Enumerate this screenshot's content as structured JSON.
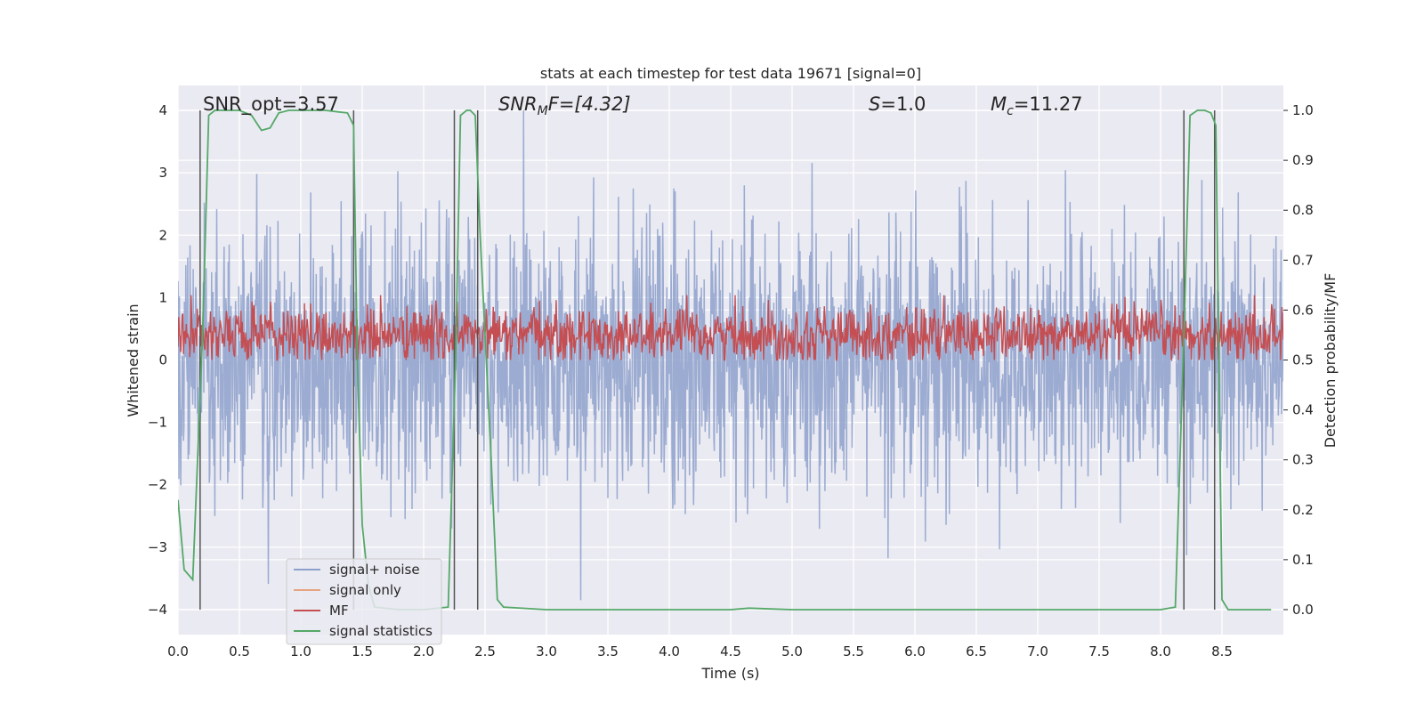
{
  "chart_data": {
    "type": "line",
    "title": "stats at each timestep for test data 19671 [signal=0]",
    "xlabel": "Time (s)",
    "ylabel": "Whitened strain",
    "y2label": "Detection probability/MF",
    "xlim": [
      0.0,
      9.0
    ],
    "ylim": [
      -4.4,
      4.4
    ],
    "y2lim": [
      -0.05,
      1.05
    ],
    "x_ticks": [
      0.0,
      0.5,
      1.0,
      1.5,
      2.0,
      2.5,
      3.0,
      3.5,
      4.0,
      4.5,
      5.0,
      5.5,
      6.0,
      6.5,
      7.0,
      7.5,
      8.0,
      8.5
    ],
    "x_tick_labels": [
      "0.0",
      "0.5",
      "1.0",
      "1.5",
      "2.0",
      "2.5",
      "3.0",
      "3.5",
      "4.0",
      "4.5",
      "5.0",
      "5.5",
      "6.0",
      "6.5",
      "7.0",
      "7.5",
      "8.0",
      "8.5"
    ],
    "y_ticks": [
      -4,
      -3,
      -2,
      -1,
      0,
      1,
      2,
      3,
      4
    ],
    "y_tick_labels": [
      "−4",
      "−3",
      "−2",
      "−1",
      "0",
      "1",
      "2",
      "3",
      "4"
    ],
    "y2_ticks": [
      0.0,
      0.1,
      0.2,
      0.3,
      0.4,
      0.5,
      0.6,
      0.7,
      0.8,
      0.9,
      1.0
    ],
    "y2_tick_labels": [
      "0.0",
      "0.1",
      "0.2",
      "0.3",
      "0.4",
      "0.5",
      "0.6",
      "0.7",
      "0.8",
      "0.9",
      "1.0"
    ],
    "grid": true,
    "legend_position": "lower-left",
    "annotations": {
      "snr_opt": "SNR_opt=3.57",
      "snr_mf_base": "SNR",
      "snr_mf_sub": "M",
      "snr_mf_rest": "F=[4.32]",
      "s_var": "S",
      "s_rest": "=1.0",
      "mc_base": "M",
      "mc_sub": "c",
      "mc_rest": "=11.27"
    },
    "detection_boundaries": [
      0.18,
      1.43,
      2.25,
      2.44,
      8.19,
      8.44
    ],
    "series": [
      {
        "name": "signal+ noise",
        "color": "#8da0cb",
        "style": "dense noisy strain trace, amplitude mostly within ±2.5, peaks to about ±4",
        "envelope_max": 4.0,
        "envelope_min": -3.85
      },
      {
        "name": "signal only",
        "color": "#e8a482",
        "values": []
      },
      {
        "name": "MF",
        "color": "#c44e52",
        "axis": "right",
        "style": "noisy trace around 0.55 on right axis",
        "center": 0.55,
        "range": [
          0.5,
          0.63
        ]
      },
      {
        "name": "signal statistics",
        "color": "#55a868",
        "axis": "right",
        "x": [
          0.0,
          0.05,
          0.12,
          0.2,
          0.25,
          0.3,
          0.5,
          0.6,
          0.68,
          0.75,
          0.82,
          0.9,
          1.0,
          1.2,
          1.38,
          1.43,
          1.46,
          1.5,
          1.55,
          1.6,
          1.8,
          2.0,
          2.2,
          2.26,
          2.3,
          2.35,
          2.38,
          2.42,
          2.46,
          2.5,
          2.55,
          2.6,
          2.65,
          3.0,
          4.5,
          4.65,
          4.75,
          5.0,
          6.0,
          7.0,
          8.0,
          8.12,
          8.19,
          8.24,
          8.3,
          8.36,
          8.41,
          8.45,
          8.5,
          8.55,
          8.9
        ],
        "y": [
          0.22,
          0.08,
          0.06,
          0.55,
          0.99,
          1.0,
          1.0,
          0.99,
          0.96,
          0.965,
          0.995,
          1.0,
          1.0,
          1.0,
          0.995,
          0.97,
          0.5,
          0.17,
          0.05,
          0.005,
          0.0,
          0.0,
          0.005,
          0.5,
          0.99,
          1.0,
          1.0,
          0.99,
          0.75,
          0.55,
          0.3,
          0.02,
          0.005,
          0.0,
          0.0,
          0.003,
          0.002,
          0.0,
          0.0,
          0.0,
          0.0,
          0.005,
          0.55,
          0.99,
          1.0,
          1.0,
          0.995,
          0.97,
          0.02,
          0.0,
          0.0
        ]
      }
    ]
  }
}
